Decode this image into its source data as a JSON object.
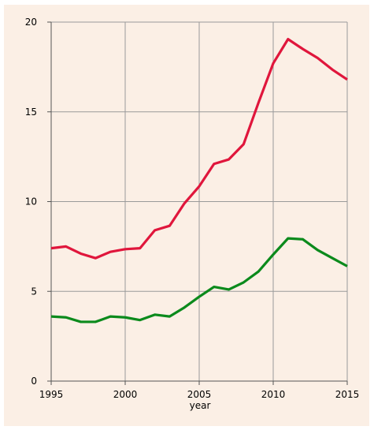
{
  "chart_data": {
    "type": "line",
    "title": "",
    "xlabel": "year",
    "ylabel": "",
    "xlim": [
      1995,
      2015
    ],
    "ylim": [
      0,
      20
    ],
    "x_ticks": [
      1995,
      2000,
      2005,
      2010,
      2015
    ],
    "y_ticks": [
      0,
      5,
      10,
      15,
      20
    ],
    "grid": true,
    "legend": "none",
    "colors": {
      "plot_background": "#fbefe5",
      "grid": "#9a9a9a",
      "axis": "#555555"
    },
    "x": [
      1995,
      1996,
      1997,
      1998,
      1999,
      2000,
      2001,
      2002,
      2003,
      2004,
      2005,
      2006,
      2007,
      2008,
      2009,
      2010,
      2011,
      2012,
      2013,
      2014,
      2015
    ],
    "series": [
      {
        "color": "#e0163c",
        "values": [
          7.4,
          7.5,
          7.1,
          6.85,
          7.2,
          7.35,
          7.4,
          8.4,
          8.65,
          9.9,
          10.85,
          12.1,
          12.35,
          13.2,
          15.5,
          17.7,
          19.05,
          18.5,
          18.0,
          17.35,
          16.8
        ]
      },
      {
        "color": "#0b8a1c",
        "values": [
          3.6,
          3.55,
          3.3,
          3.3,
          3.6,
          3.55,
          3.4,
          3.7,
          3.6,
          4.1,
          4.7,
          5.25,
          5.1,
          5.5,
          6.1,
          7.05,
          7.95,
          7.9,
          7.3,
          6.85,
          6.4
        ]
      }
    ]
  }
}
